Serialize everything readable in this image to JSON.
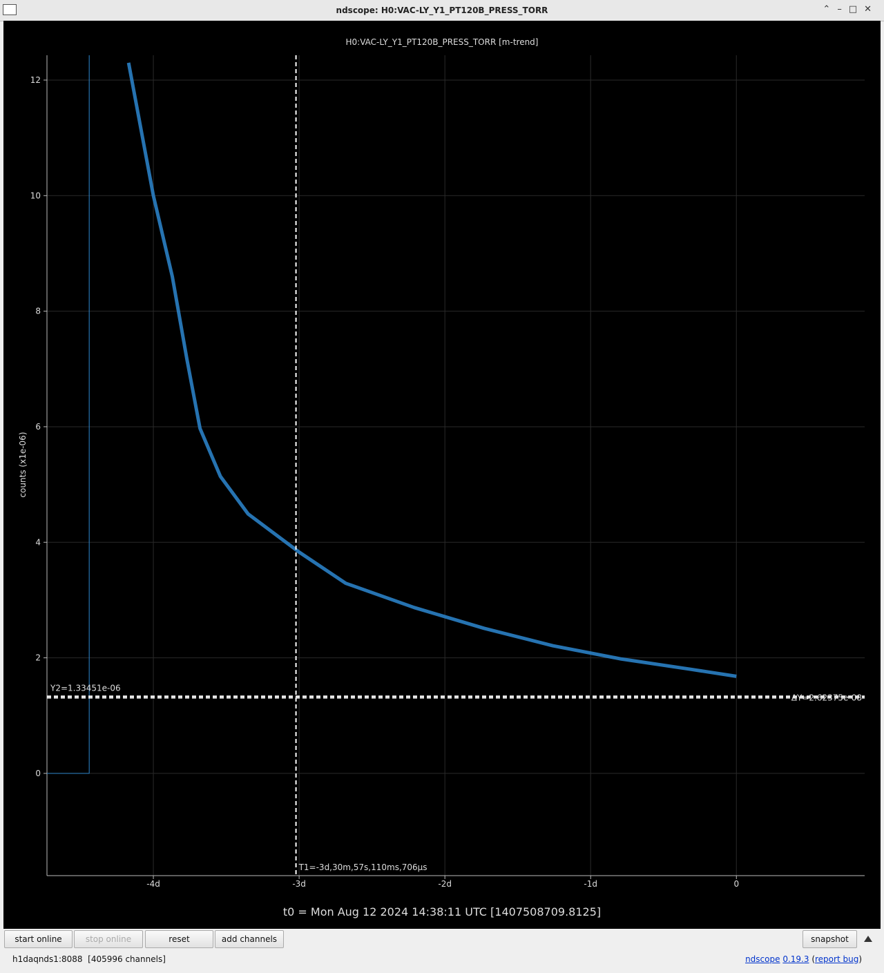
{
  "window": {
    "title": "ndscope: H0:VAC-LY_Y1_PT120B_PRESS_TORR"
  },
  "chart_data": {
    "type": "line",
    "title": "H0:VAC-LY_Y1_PT120B_PRESS_TORR [m-trend]",
    "x_label": "t0 = Mon Aug 12 2024 14:38:11 UTC [1407508709.8125]",
    "y_label": "counts (x1e-06)",
    "color": "#2a7fc4",
    "grid": true,
    "x": [
      -4.73,
      -4.44,
      -4.44,
      -4.3,
      -4.17,
      -4.0,
      -3.87,
      -3.77,
      -3.68,
      -3.54,
      -3.35,
      -3.0,
      -2.68,
      -2.21,
      -1.73,
      -1.26,
      -0.79,
      -0.31,
      0
    ],
    "values": [
      0,
      0,
      12.43,
      null,
      12.3,
      10.0,
      8.6,
      7.17,
      5.97,
      5.14,
      4.49,
      3.83,
      3.29,
      2.87,
      2.51,
      2.21,
      1.98,
      1.8,
      1.68
    ],
    "xlim": [
      -4.73,
      0.88
    ],
    "ylim": [
      -1.77,
      12.43
    ],
    "xticks": [
      {
        "value": -4,
        "label": "-4d"
      },
      {
        "value": -3,
        "label": "-3d"
      },
      {
        "value": -2,
        "label": "-2d"
      },
      {
        "value": -1,
        "label": "-1d"
      },
      0
    ],
    "yticks": [
      0,
      2,
      4,
      6,
      8,
      10,
      12
    ],
    "cursors": {
      "t1": {
        "value": -3.0215,
        "label": "T1=-3d,30m,57s,110ms,706µs"
      },
      "y1": 1.30827,
      "y2": {
        "value": 1.33451,
        "label": "Y2=1.33451e-06"
      },
      "delta_label": "ΔY=2.62375e-08"
    }
  },
  "controls": {
    "start": "start online",
    "stop": "stop online",
    "reset": "reset",
    "add": "add channels",
    "snapshot": "snapshot"
  },
  "status": {
    "server": "h1daqnds1:8088  [405996 channels]",
    "app": "ndscope",
    "version": "0.19.3",
    "open": "(",
    "bug": "report bug",
    "close": ")"
  }
}
